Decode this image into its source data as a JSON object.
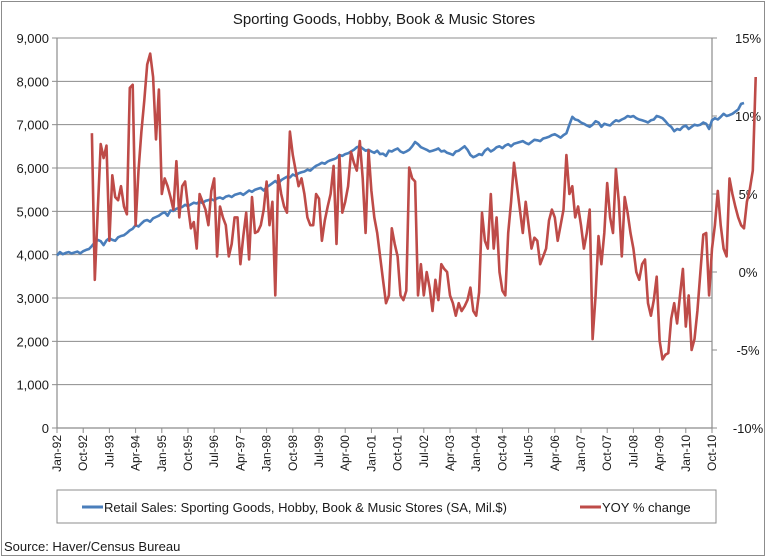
{
  "chart_data": {
    "type": "line",
    "title": "Sporting Goods, Hobby, Book & Music Stores",
    "xlabel": "",
    "ylabel_left": "",
    "ylabel_right": "",
    "source": "Source: Haver/Census Bureau",
    "grid": true,
    "legend_position": "bottom",
    "left_axis": {
      "range": [
        0,
        9000
      ],
      "ticks": [
        0,
        1000,
        2000,
        3000,
        4000,
        5000,
        6000,
        7000,
        8000,
        9000
      ],
      "tick_labels": [
        "0",
        "1,000",
        "2,000",
        "3,000",
        "4,000",
        "5,000",
        "6,000",
        "7,000",
        "8,000",
        "9,000"
      ]
    },
    "right_axis": {
      "range": [
        -10,
        15
      ],
      "ticks": [
        -10,
        -5,
        0,
        5,
        10,
        15
      ],
      "tick_labels": [
        "-10%",
        "-5%",
        "0%",
        "5%",
        "10%",
        "15%"
      ]
    },
    "x_axis": {
      "start": "Jan-92",
      "end": "Oct-10",
      "tick_labels": [
        "Jan-92",
        "Oct-92",
        "Jul-93",
        "Apr-94",
        "Jan-95",
        "Oct-95",
        "Jul-96",
        "Apr-97",
        "Jan-98",
        "Oct-98",
        "Jul-99",
        "Apr-00",
        "Jan-01",
        "Oct-01",
        "Jul-02",
        "Apr-03",
        "Jan-04",
        "Oct-04",
        "Jul-05",
        "Apr-06",
        "Jan-07",
        "Oct-07",
        "Jul-08",
        "Apr-09",
        "Jan-10",
        "Oct-10"
      ]
    },
    "series": [
      {
        "name": "Retail Sales: Sporting Goods, Hobby, Book & Music Stores (SA, Mil.$)",
        "axis": "left",
        "color": "#4a7ebb",
        "start": "Jan-92",
        "values": [
          3980,
          4060,
          4010,
          4040,
          4060,
          4030,
          4050,
          4070,
          4030,
          4080,
          4110,
          4130,
          4200,
          4280,
          4340,
          4310,
          4220,
          4330,
          4380,
          4340,
          4320,
          4400,
          4430,
          4450,
          4500,
          4560,
          4600,
          4680,
          4650,
          4720,
          4780,
          4800,
          4760,
          4840,
          4870,
          4900,
          4950,
          4980,
          4900,
          5020,
          5010,
          5060,
          5080,
          5100,
          5150,
          5120,
          5160,
          5200,
          5180,
          5220,
          5190,
          5240,
          5260,
          5280,
          5250,
          5300,
          5320,
          5290,
          5340,
          5360,
          5330,
          5380,
          5400,
          5420,
          5380,
          5430,
          5480,
          5450,
          5500,
          5520,
          5540,
          5480,
          5560,
          5600,
          5650,
          5700,
          5640,
          5720,
          5760,
          5800,
          5780,
          5850,
          5820,
          5880,
          5900,
          5920,
          5960,
          5940,
          6000,
          6050,
          6080,
          6120,
          6100,
          6150,
          6180,
          6200,
          6230,
          6300,
          6280,
          6320,
          6340,
          6380,
          6420,
          6480,
          6500,
          6450,
          6400,
          6420,
          6380,
          6350,
          6400,
          6320,
          6330,
          6280,
          6400,
          6380,
          6420,
          6450,
          6380,
          6350,
          6380,
          6420,
          6500,
          6600,
          6550,
          6480,
          6450,
          6420,
          6380,
          6400,
          6420,
          6450,
          6380,
          6400,
          6350,
          6330,
          6300,
          6380,
          6400,
          6450,
          6500,
          6420,
          6300,
          6250,
          6280,
          6320,
          6300,
          6400,
          6450,
          6380,
          6420,
          6480,
          6500,
          6460,
          6520,
          6550,
          6500,
          6560,
          6580,
          6600,
          6620,
          6580,
          6550,
          6600,
          6650,
          6640,
          6620,
          6680,
          6700,
          6720,
          6760,
          6780,
          6740,
          6700,
          6760,
          6800,
          7000,
          7180,
          7120,
          7100,
          7050,
          7020,
          6980,
          6950,
          7000,
          7080,
          7050,
          6950,
          7020,
          7000,
          6980,
          7050,
          7100,
          7080,
          7120,
          7150,
          7200,
          7180,
          7200,
          7150,
          7120,
          7100,
          7080,
          7050,
          7100,
          7120,
          7200,
          7180,
          7150,
          7080,
          7000,
          6950,
          6850,
          6900,
          6880,
          6950,
          6980,
          6900,
          6950,
          7000,
          6980,
          7000,
          7050,
          7020,
          6900,
          7100,
          7150,
          7120,
          7180,
          7250,
          7200,
          7220,
          7250,
          7300,
          7350,
          7480,
          7500
        ]
      },
      {
        "name": "YOY % change",
        "axis": "right",
        "color": "#be4b48",
        "start": "Jan-93",
        "values": [
          8.9,
          -0.5,
          4.0,
          8.2,
          7.3,
          8.1,
          2.0,
          6.2,
          4.8,
          4.6,
          5.5,
          4.2,
          3.7,
          11.8,
          12.0,
          3.0,
          6.5,
          9.0,
          11.0,
          13.3,
          14.0,
          12.5,
          8.5,
          11.7,
          5.0,
          6.0,
          5.5,
          4.8,
          4.0,
          7.1,
          3.5,
          5.5,
          5.8,
          4.2,
          2.8,
          3.2,
          1.5,
          5.0,
          4.5,
          4.0,
          3.0,
          5.2,
          6.0,
          1.0,
          4.2,
          3.5,
          3.0,
          1.0,
          1.8,
          3.5,
          3.5,
          0.5,
          2.3,
          3.8,
          0.8,
          4.8,
          2.5,
          2.6,
          3.0,
          4.0,
          5.8,
          3.0,
          4.5,
          -1.5,
          6.2,
          5.0,
          4.2,
          3.8,
          9.0,
          7.5,
          6.5,
          5.5,
          6.0,
          5.0,
          3.5,
          3.0,
          3.0,
          5.0,
          4.7,
          2.0,
          3.3,
          4.2,
          5.0,
          6.8,
          1.8,
          7.5,
          3.8,
          4.5,
          5.5,
          7.7,
          7.0,
          6.5,
          8.4,
          6.0,
          2.5,
          7.8,
          5.2,
          3.5,
          2.5,
          1.0,
          -0.5,
          -2.0,
          -1.5,
          2.8,
          1.8,
          1.0,
          -1.5,
          -1.8,
          -1.2,
          6.7,
          6.0,
          5.8,
          -1.5,
          0.5,
          -1.5,
          0.0,
          -1.0,
          -2.5,
          -0.5,
          -1.8,
          0.5,
          0.2,
          0.0,
          -1.5,
          -2.0,
          -2.8,
          -2.0,
          -2.5,
          -2.2,
          -1.8,
          -1.0,
          -2.5,
          -2.8,
          -1.3,
          3.8,
          2.0,
          1.5,
          5.0,
          1.5,
          3.5,
          0.0,
          -1.2,
          -1.5,
          2.5,
          4.5,
          7.0,
          5.5,
          4.0,
          2.5,
          4.5,
          3.0,
          1.5,
          2.2,
          2.0,
          0.5,
          1.0,
          1.5,
          3.3,
          4.0,
          3.5,
          2.0,
          3.0,
          4.0,
          7.5,
          5.0,
          5.5,
          3.5,
          4.2,
          3.0,
          1.5,
          2.5,
          4.0,
          -4.3,
          -1.5,
          2.3,
          0.5,
          2.5,
          5.7,
          3.5,
          2.5,
          6.6,
          4.5,
          1.0,
          4.8,
          3.8,
          2.5,
          1.5,
          0.0,
          -0.5,
          0.5,
          0.8,
          -2.0,
          -2.8,
          -1.8,
          -0.3,
          -4.4,
          -5.6,
          -5.3,
          -5.2,
          -3.0,
          -2.0,
          -3.3,
          -1.5,
          0.2,
          -3.5,
          -1.5,
          -5.0,
          -4.3,
          -2.5,
          0.0,
          2.4,
          2.5,
          -1.5,
          1.5,
          3.0,
          5.2,
          3.0,
          1.5,
          1.0,
          6.0,
          5.0,
          4.2,
          3.5,
          3.0,
          2.8,
          4.5,
          5.3,
          6.5,
          12.5
        ]
      }
    ]
  },
  "legend": {
    "items": [
      {
        "label": "Retail Sales: Sporting Goods, Hobby, Book & Music Stores (SA, Mil.$)",
        "color": "#4a7ebb"
      },
      {
        "label": "YOY % change",
        "color": "#be4b48"
      }
    ]
  }
}
